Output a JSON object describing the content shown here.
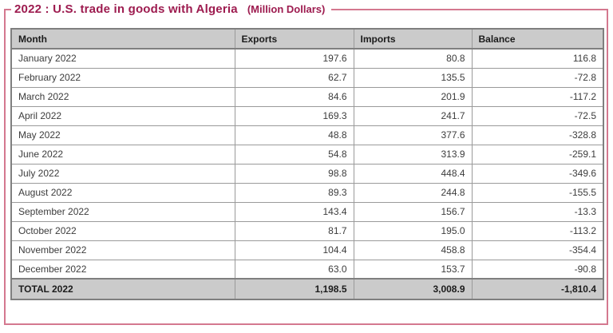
{
  "colors": {
    "accent_maroon": "#9d1b4f",
    "frame_border_pink": "#d4788f",
    "header_row_bg": "#cbcbcb",
    "total_row_bg": "#cbcbcb",
    "table_border": "#7f7f7f",
    "cell_border": "#9a9a9a"
  },
  "chart_data": {
    "type": "table",
    "title": "2022 : U.S. trade in goods with Algeria",
    "subtitle": "(Million Dollars)",
    "unit": "Million Dollars",
    "columns": [
      "Month",
      "Exports",
      "Imports",
      "Balance"
    ],
    "rows": [
      {
        "month": "January 2022",
        "exports": "197.6",
        "imports": "80.8",
        "balance": "116.8"
      },
      {
        "month": "February 2022",
        "exports": "62.7",
        "imports": "135.5",
        "balance": "-72.8"
      },
      {
        "month": "March 2022",
        "exports": "84.6",
        "imports": "201.9",
        "balance": "-117.2"
      },
      {
        "month": "April 2022",
        "exports": "169.3",
        "imports": "241.7",
        "balance": "-72.5"
      },
      {
        "month": "May 2022",
        "exports": "48.8",
        "imports": "377.6",
        "balance": "-328.8"
      },
      {
        "month": "June 2022",
        "exports": "54.8",
        "imports": "313.9",
        "balance": "-259.1"
      },
      {
        "month": "July 2022",
        "exports": "98.8",
        "imports": "448.4",
        "balance": "-349.6"
      },
      {
        "month": "August 2022",
        "exports": "89.3",
        "imports": "244.8",
        "balance": "-155.5"
      },
      {
        "month": "September 2022",
        "exports": "143.4",
        "imports": "156.7",
        "balance": "-13.3"
      },
      {
        "month": "October 2022",
        "exports": "81.7",
        "imports": "195.0",
        "balance": "-113.2"
      },
      {
        "month": "November 2022",
        "exports": "104.4",
        "imports": "458.8",
        "balance": "-354.4"
      },
      {
        "month": "December 2022",
        "exports": "63.0",
        "imports": "153.7",
        "balance": "-90.8"
      }
    ],
    "total": {
      "month": "TOTAL 2022",
      "exports": "1,198.5",
      "imports": "3,008.9",
      "balance": "-1,810.4"
    }
  }
}
